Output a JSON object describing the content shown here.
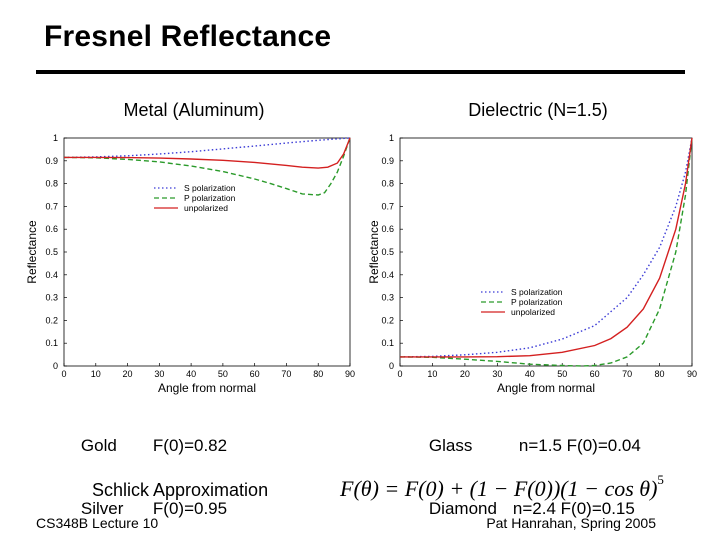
{
  "slide": {
    "title": "Fresnel Reflectance",
    "footer_left": "CS348B Lecture 10",
    "footer_right": "Pat Hanrahan, Spring 2005"
  },
  "metal_info": {
    "rows": [
      {
        "material": "Gold",
        "value": "F(0)=0.82"
      },
      {
        "material": "Silver",
        "value": "F(0)=0.95"
      }
    ]
  },
  "dielectric_info": {
    "rows": [
      {
        "material": "Glass",
        "n": "n=1.5",
        "value": "F(0)=0.04"
      },
      {
        "material": "Diamond",
        "n": "n=2.4",
        "value": "F(0)=0.15"
      }
    ]
  },
  "schlick": {
    "label": "Schlick Approximation",
    "formula_main": "F(θ) = F(0) + (1 − F(0))(1 − cos θ)",
    "formula_exp": "5"
  },
  "chart_data": [
    {
      "type": "line",
      "subtitle": "Metal (Aluminum)",
      "xlabel": "Angle from normal",
      "ylabel": "Reflectance",
      "xlim": [
        0,
        90
      ],
      "ylim": [
        0,
        1
      ],
      "xticks": [
        0,
        10,
        20,
        30,
        40,
        50,
        60,
        70,
        80,
        90
      ],
      "xtick_labels": [
        "0",
        "10",
        "20",
        "30",
        "40",
        "50",
        "60",
        "70",
        "80",
        "90"
      ],
      "yticks": [
        0,
        0.1,
        0.2,
        0.3,
        0.4,
        0.5,
        0.6,
        0.7,
        0.8,
        0.9,
        1.0
      ],
      "ytick_labels": [
        "0",
        "0.1",
        "0.2",
        "0.3",
        "0.4",
        "0.5",
        "0.6",
        "0.7",
        "0.8",
        "0.9",
        "1"
      ],
      "legend_position": "center-right",
      "series": [
        {
          "name": "S polarization",
          "color": "#3b3bd6",
          "dash": "dot",
          "x": [
            0,
            10,
            20,
            30,
            40,
            50,
            60,
            70,
            80,
            85,
            90
          ],
          "y": [
            0.915,
            0.917,
            0.922,
            0.93,
            0.94,
            0.952,
            0.965,
            0.978,
            0.99,
            0.995,
            1.0
          ]
        },
        {
          "name": "P polarization",
          "color": "#2a9a2a",
          "dash": "dash",
          "x": [
            0,
            10,
            20,
            30,
            40,
            50,
            60,
            65,
            70,
            75,
            80,
            82,
            84,
            86,
            88,
            90
          ],
          "y": [
            0.915,
            0.913,
            0.906,
            0.895,
            0.877,
            0.853,
            0.82,
            0.8,
            0.778,
            0.755,
            0.75,
            0.76,
            0.8,
            0.85,
            0.92,
            1.0
          ]
        },
        {
          "name": "unpolarized",
          "color": "#d42020",
          "dash": "solid",
          "x": [
            0,
            10,
            20,
            30,
            40,
            50,
            60,
            70,
            75,
            80,
            83,
            86,
            88,
            90
          ],
          "y": [
            0.915,
            0.915,
            0.914,
            0.912,
            0.908,
            0.902,
            0.893,
            0.88,
            0.872,
            0.868,
            0.872,
            0.89,
            0.93,
            1.0
          ]
        }
      ]
    },
    {
      "type": "line",
      "subtitle": "Dielectric (N=1.5)",
      "xlabel": "Angle from normal",
      "ylabel": "Reflectance",
      "xlim": [
        0,
        90
      ],
      "ylim": [
        0,
        1
      ],
      "xticks": [
        0,
        10,
        20,
        30,
        40,
        50,
        60,
        70,
        80,
        90
      ],
      "xtick_labels": [
        "0",
        "10",
        "20",
        "30",
        "40",
        "50",
        "60",
        "70",
        "80",
        "90"
      ],
      "yticks": [
        0,
        0.1,
        0.2,
        0.3,
        0.4,
        0.5,
        0.6,
        0.7,
        0.8,
        0.9,
        1.0
      ],
      "ytick_labels": [
        "0",
        "0.1",
        "0.2",
        "0.3",
        "0.4",
        "0.5",
        "0.6",
        "0.7",
        "0.8",
        "0.9",
        "1"
      ],
      "legend_position": "center-right",
      "series": [
        {
          "name": "S polarization",
          "color": "#3b3bd6",
          "dash": "dot",
          "x": [
            0,
            10,
            20,
            30,
            40,
            50,
            60,
            70,
            75,
            80,
            85,
            88,
            90
          ],
          "y": [
            0.04,
            0.042,
            0.049,
            0.06,
            0.08,
            0.118,
            0.177,
            0.3,
            0.4,
            0.52,
            0.7,
            0.85,
            1.0
          ]
        },
        {
          "name": "P polarization",
          "color": "#2a9a2a",
          "dash": "dash",
          "x": [
            0,
            10,
            20,
            30,
            40,
            50,
            56,
            60,
            65,
            70,
            75,
            80,
            85,
            88,
            90
          ],
          "y": [
            0.04,
            0.038,
            0.03,
            0.02,
            0.008,
            0.002,
            0.0,
            0.002,
            0.013,
            0.04,
            0.1,
            0.25,
            0.5,
            0.75,
            1.0
          ]
        },
        {
          "name": "unpolarized",
          "color": "#d42020",
          "dash": "solid",
          "x": [
            0,
            10,
            20,
            30,
            40,
            50,
            60,
            65,
            70,
            75,
            80,
            85,
            88,
            90
          ],
          "y": [
            0.04,
            0.04,
            0.04,
            0.041,
            0.045,
            0.06,
            0.09,
            0.12,
            0.17,
            0.25,
            0.385,
            0.6,
            0.8,
            1.0
          ]
        }
      ]
    }
  ]
}
